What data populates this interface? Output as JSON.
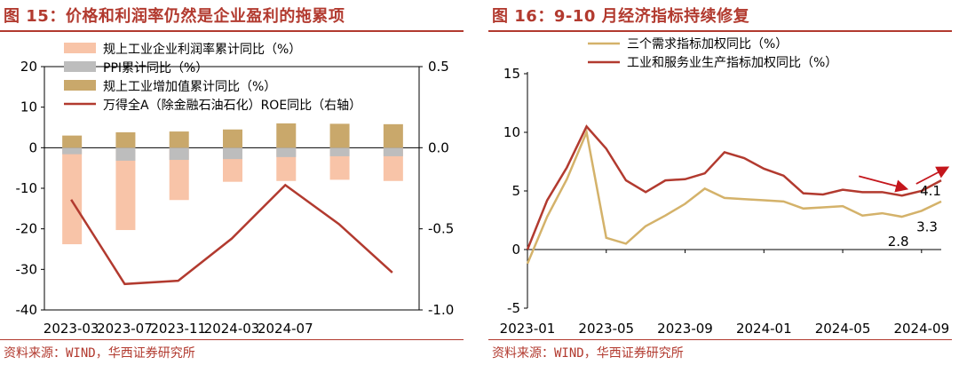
{
  "left": {
    "title": "图 15：价格和利润率仍然是企业盈利的拖累项",
    "source": "资料来源：WIND，华西证券研究所"
  },
  "right": {
    "title": "图 16：9-10 月经济指标持续修复",
    "source": "资料来源：WIND，华西证券研究所"
  },
  "chart_data": [
    {
      "type": "bar",
      "categories": [
        "2023-03",
        "2023-07",
        "2023-11",
        "2024-03",
        "2024-07",
        "2024-09",
        "2024-10"
      ],
      "x_tick_labels": [
        "2023-03",
        "2023-07",
        "2023-11",
        "2024-03",
        "2024-07"
      ],
      "ylim": [
        -40,
        20
      ],
      "yticks": [
        20,
        10,
        0,
        -10,
        -20,
        -30,
        -40
      ],
      "y2lim": [
        -1.0,
        0.5
      ],
      "y2ticks": [
        "0.5",
        "0.0",
        "-0.5",
        "-1.0"
      ],
      "grid": false,
      "legend": "top",
      "series": [
        {
          "name": "规上工业企业利润率累计同比（%）",
          "type": "bar",
          "color": "#f8c4a8",
          "values": [
            -23.8,
            -20.3,
            -12.9,
            -8.4,
            -8.2,
            -7.9,
            -8.2
          ]
        },
        {
          "name": "PPI累计同比（%）",
          "type": "bar",
          "color": "#bdbdbd",
          "values": [
            -1.6,
            -3.2,
            -3.0,
            -2.8,
            -2.3,
            -2.1,
            -2.1
          ]
        },
        {
          "name": "规上工业增加值累计同比（%）",
          "type": "bar",
          "color": "#c9a86b",
          "values": [
            3.0,
            3.8,
            4.0,
            4.5,
            6.0,
            5.9,
            5.8
          ]
        },
        {
          "name": "万得全A（除金融石油石化）ROE同比（右轴）",
          "type": "line",
          "axis": "right",
          "color": "#b23a2f",
          "values": [
            -0.32,
            -0.84,
            -0.82,
            -0.56,
            -0.23,
            -0.47,
            -0.77
          ]
        }
      ]
    },
    {
      "type": "line",
      "x": [
        "2023-01",
        "2023-02",
        "2023-03",
        "2023-04",
        "2023-05",
        "2023-06",
        "2023-07",
        "2023-08",
        "2023-09",
        "2023-10",
        "2023-11",
        "2023-12",
        "2024-01",
        "2024-02",
        "2024-03",
        "2024-04",
        "2024-05",
        "2024-06",
        "2024-07",
        "2024-08",
        "2024-09",
        "2024-10"
      ],
      "x_tick_labels": [
        "2023-01",
        "2023-05",
        "2023-09",
        "2024-01",
        "2024-05",
        "2024-09"
      ],
      "ylim": [
        -5,
        15
      ],
      "yticks": [
        15,
        10,
        5,
        0,
        -5
      ],
      "grid": false,
      "legend": "top",
      "annotations": [
        "4.1",
        "3.3",
        "2.8"
      ],
      "series": [
        {
          "name": "三个需求指标加权同比（%）",
          "color": "#d4b26a",
          "values": [
            -1.2,
            2.8,
            6.0,
            10.0,
            1.0,
            0.5,
            2.0,
            2.9,
            3.9,
            5.2,
            4.4,
            4.3,
            4.2,
            4.1,
            3.5,
            3.6,
            3.7,
            2.9,
            3.1,
            2.8,
            3.3,
            4.1
          ]
        },
        {
          "name": "工业和服务业生产指标加权同比（%）",
          "color": "#b23a2f",
          "values": [
            0.0,
            4.2,
            7.0,
            10.5,
            8.6,
            5.9,
            4.9,
            5.9,
            6.0,
            6.5,
            8.3,
            7.8,
            6.9,
            6.3,
            4.8,
            4.7,
            5.1,
            4.9,
            4.9,
            4.6,
            5.0,
            5.9
          ]
        }
      ]
    }
  ]
}
